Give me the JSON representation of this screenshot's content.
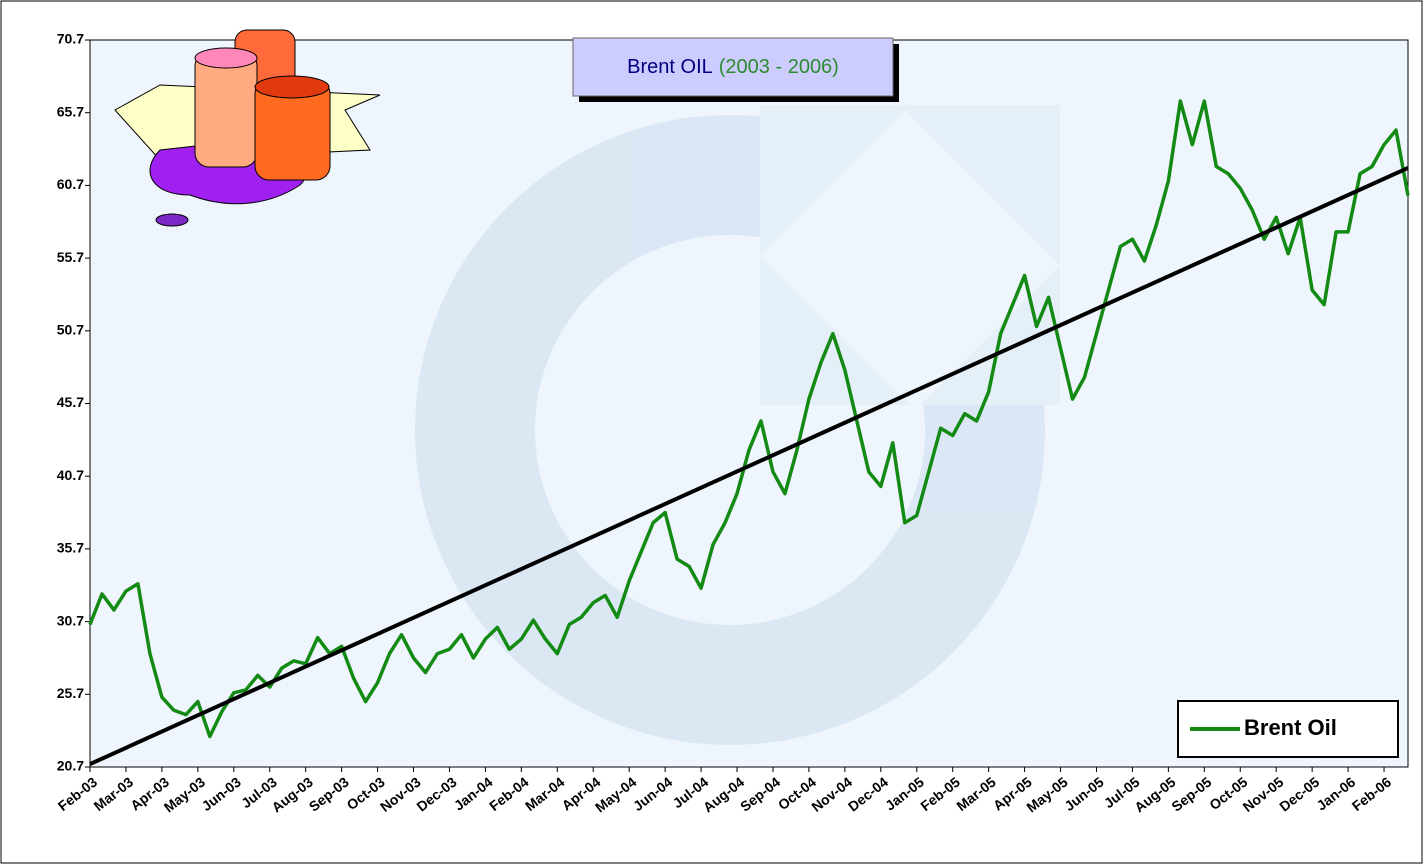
{
  "chart_data": {
    "type": "line",
    "title": "Brent OIL",
    "subtitle": "(2003 - 2006)",
    "categories": [
      "Feb-03",
      null,
      null,
      "Mar-03",
      null,
      null,
      "Apr-03",
      null,
      null,
      "May-03",
      null,
      null,
      "Jun-03",
      null,
      null,
      "Jul-03",
      null,
      null,
      "Aug-03",
      null,
      null,
      "Sep-03",
      null,
      null,
      "Oct-03",
      null,
      null,
      "Nov-03",
      null,
      null,
      "Dec-03",
      null,
      null,
      "Jan-04",
      null,
      null,
      "Feb-04",
      null,
      null,
      "Mar-04",
      null,
      null,
      "Apr-04",
      null,
      null,
      "May-04",
      null,
      null,
      "Jun-04",
      null,
      null,
      "Jul-04",
      null,
      null,
      "Aug-04",
      null,
      null,
      "Sep-04",
      null,
      null,
      "Oct-04",
      null,
      null,
      "Nov-04",
      null,
      null,
      "Dec-04",
      null,
      null,
      "Jan-05",
      null,
      null,
      "Feb-05",
      null,
      null,
      "Mar-05",
      null,
      null,
      "Apr-05",
      null,
      null,
      "May-05",
      null,
      null,
      "Jun-05",
      null,
      null,
      "Jul-05",
      null,
      null,
      "Aug-05",
      null,
      null,
      "Sep-05",
      null,
      null,
      "Oct-05",
      null,
      null,
      "Nov-05",
      null,
      null,
      "Dec-05",
      null,
      null,
      "Jan-06",
      null,
      null,
      "Feb-06",
      null,
      null
    ],
    "series": [
      {
        "name": "Brent Oil",
        "color": "#138a13",
        "values": [
          30.5,
          32.6,
          31.5,
          32.8,
          33.3,
          28.5,
          25.5,
          24.6,
          24.3,
          25.2,
          22.8,
          24.5,
          25.8,
          26.0,
          27.0,
          26.2,
          27.5,
          28.0,
          27.8,
          29.6,
          28.5,
          29.0,
          26.8,
          25.2,
          26.5,
          28.5,
          29.8,
          28.2,
          27.2,
          28.5,
          28.8,
          29.8,
          28.2,
          29.5,
          30.3,
          28.8,
          29.5,
          30.8,
          29.5,
          28.5,
          30.5,
          31.0,
          32.0,
          32.5,
          31.0,
          33.5,
          35.5,
          37.5,
          38.2,
          35.0,
          34.5,
          33.0,
          36.0,
          37.5,
          39.5,
          42.5,
          44.5,
          41.0,
          39.5,
          42.5,
          46.0,
          48.5,
          50.5,
          48.0,
          44.5,
          41.0,
          40.0,
          43.0,
          37.5,
          38.0,
          41.0,
          44.0,
          43.5,
          45.0,
          44.5,
          46.5,
          50.5,
          52.5,
          54.5,
          51.0,
          53.0,
          49.5,
          46.0,
          47.5,
          50.5,
          53.5,
          56.5,
          57.0,
          55.5,
          58.0,
          61.0,
          66.5,
          63.5,
          66.5,
          62.0,
          61.5,
          60.5,
          59.0,
          57.0,
          58.5,
          56.0,
          58.5,
          53.5,
          52.5,
          57.5,
          57.5,
          61.5,
          62.0,
          63.5,
          64.5,
          60.0
        ]
      }
    ],
    "trend": {
      "color": "#000000",
      "values": [
        20.9,
        61.9
      ]
    },
    "ylim": [
      20.7,
      70.7
    ],
    "yticks": [
      20.7,
      25.7,
      30.7,
      35.7,
      40.7,
      45.7,
      50.7,
      55.7,
      60.7,
      65.7,
      70.7
    ],
    "legend": "lower right"
  }
}
